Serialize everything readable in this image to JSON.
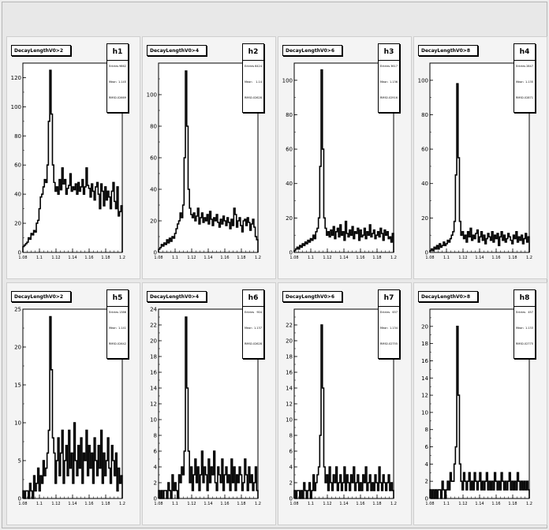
{
  "x_axis": {
    "min": 1.08,
    "max": 1.2,
    "ticks": [
      "1.08",
      "1.1",
      "1.12",
      "1.14",
      "1.16",
      "1.18",
      "1.2"
    ]
  },
  "stat_labels": {
    "entries": "Entries",
    "mean": "Mean",
    "rms": "RMS"
  },
  "colors": {
    "line": "#000000",
    "pad": "#f4f4f4",
    "frame": "#e8e8e8"
  },
  "chart_data": [
    {
      "type": "histogram",
      "name": "h1",
      "title": "DecayLengthV0>2",
      "entries": "9862",
      "mean": "1.145",
      "rms": "0.02669",
      "ylim": [
        0,
        130
      ],
      "yticks": [
        0,
        20,
        40,
        60,
        80,
        100,
        120
      ],
      "xlim": [
        1.08,
        1.2
      ],
      "y": [
        4,
        5,
        6,
        7,
        10,
        9,
        13,
        12,
        15,
        14,
        20,
        22,
        30,
        38,
        40,
        45,
        50,
        48,
        60,
        90,
        125,
        95,
        60,
        48,
        42,
        45,
        40,
        50,
        43,
        58,
        47,
        50,
        40,
        44,
        46,
        54,
        42,
        45,
        43,
        47,
        40,
        48,
        42,
        45,
        50,
        40,
        45,
        58,
        46,
        44,
        38,
        47,
        42,
        36,
        45,
        48,
        40,
        30,
        47,
        42,
        32,
        45,
        36,
        42,
        38,
        30,
        42,
        48,
        35,
        30,
        45,
        25,
        28,
        32
      ]
    },
    {
      "type": "histogram",
      "name": "h2",
      "title": "DecayLengthV0>4",
      "entries": "6424",
      "mean": "1.14",
      "rms": "0.02628",
      "ylim": [
        0,
        120
      ],
      "yticks": [
        0,
        20,
        40,
        60,
        80,
        100
      ],
      "xlim": [
        1.08,
        1.2
      ],
      "y": [
        2,
        3,
        5,
        4,
        6,
        5,
        8,
        6,
        9,
        7,
        10,
        9,
        12,
        15,
        18,
        20,
        25,
        22,
        30,
        60,
        115,
        80,
        40,
        28,
        24,
        22,
        25,
        20,
        23,
        28,
        18,
        22,
        25,
        19,
        22,
        20,
        24,
        18,
        26,
        21,
        17,
        22,
        20,
        24,
        19,
        16,
        21,
        18,
        23,
        20,
        17,
        22,
        19,
        15,
        21,
        17,
        28,
        24,
        16,
        20,
        22,
        17,
        13,
        20,
        21,
        17,
        22,
        19,
        14,
        18,
        21,
        16,
        10,
        8
      ]
    },
    {
      "type": "histogram",
      "name": "h3",
      "title": "DecayLengthV0>6",
      "entries": "3617",
      "mean": "1.136",
      "rms": "0.02916",
      "ylim": [
        0,
        110
      ],
      "yticks": [
        0,
        20,
        40,
        60,
        80,
        100
      ],
      "xlim": [
        1.08,
        1.2
      ],
      "y": [
        1,
        2,
        3,
        2,
        4,
        3,
        5,
        4,
        6,
        5,
        7,
        6,
        8,
        7,
        10,
        8,
        12,
        14,
        20,
        50,
        106,
        60,
        20,
        14,
        10,
        12,
        9,
        13,
        10,
        15,
        8,
        12,
        14,
        9,
        16,
        10,
        12,
        7,
        18,
        11,
        9,
        13,
        10,
        15,
        8,
        12,
        11,
        14,
        7,
        13,
        9,
        10,
        14,
        8,
        12,
        10,
        16,
        9,
        11,
        13,
        8,
        10,
        12,
        9,
        14,
        11,
        7,
        13,
        10,
        12,
        8,
        9,
        6,
        11
      ]
    },
    {
      "type": "histogram",
      "name": "h4",
      "title": "DecayLengthV0>8",
      "entries": "2847",
      "mean": "1.135",
      "rms": "0.02871",
      "ylim": [
        0,
        110
      ],
      "yticks": [
        0,
        20,
        40,
        60,
        80,
        100
      ],
      "xlim": [
        1.08,
        1.2
      ],
      "y": [
        1,
        2,
        1,
        3,
        2,
        4,
        2,
        5,
        3,
        4,
        6,
        4,
        5,
        7,
        6,
        8,
        10,
        12,
        18,
        45,
        98,
        55,
        18,
        10,
        12,
        8,
        10,
        6,
        12,
        9,
        14,
        7,
        10,
        8,
        11,
        13,
        6,
        9,
        12,
        7,
        10,
        5,
        8,
        11,
        9,
        7,
        12,
        6,
        10,
        8,
        11,
        4,
        9,
        12,
        7,
        10,
        6,
        8,
        11,
        9,
        7,
        5,
        10,
        8,
        12,
        6,
        9,
        7,
        10,
        5,
        8,
        11,
        6,
        9
      ]
    },
    {
      "type": "histogram",
      "name": "h5",
      "title": "DecayLengthV0>2",
      "entries": "1386",
      "mean": "1.141",
      "rms": "0.02642",
      "ylim": [
        0,
        25
      ],
      "yticks": [
        0,
        5,
        10,
        15,
        20,
        25
      ],
      "xlim": [
        1.08,
        1.2
      ],
      "y": [
        1,
        0,
        1,
        1,
        0,
        2,
        1,
        0,
        3,
        1,
        2,
        4,
        1,
        3,
        2,
        5,
        3,
        4,
        6,
        9,
        24,
        17,
        8,
        6,
        2,
        5,
        8,
        3,
        6,
        9,
        2,
        5,
        7,
        3,
        9,
        4,
        6,
        2,
        10,
        5,
        3,
        7,
        4,
        8,
        2,
        6,
        5,
        9,
        3,
        7,
        4,
        6,
        2,
        8,
        5,
        3,
        7,
        4,
        9,
        2,
        6,
        3,
        5,
        8,
        4,
        2,
        7,
        5,
        3,
        6,
        1,
        4,
        2,
        3
      ]
    },
    {
      "type": "histogram",
      "name": "h6",
      "title": "DecayLengthV0>4",
      "entries": "904",
      "mean": "1.137",
      "rms": "0.02628",
      "ylim": [
        0,
        24
      ],
      "yticks": [
        0,
        2,
        4,
        6,
        8,
        10,
        12,
        14,
        16,
        18,
        20,
        22,
        24
      ],
      "xlim": [
        1.08,
        1.2
      ],
      "y": [
        1,
        0,
        1,
        0,
        1,
        1,
        0,
        2,
        1,
        0,
        3,
        1,
        2,
        1,
        0,
        3,
        2,
        4,
        3,
        6,
        23,
        14,
        6,
        2,
        4,
        1,
        3,
        5,
        2,
        4,
        1,
        3,
        6,
        2,
        4,
        3,
        1,
        5,
        2,
        4,
        3,
        6,
        2,
        1,
        4,
        3,
        2,
        5,
        1,
        3,
        4,
        2,
        3,
        1,
        5,
        2,
        4,
        1,
        3,
        2,
        4,
        3,
        1,
        2,
        5,
        3,
        1,
        4,
        2,
        3,
        1,
        2,
        4,
        1
      ]
    },
    {
      "type": "histogram",
      "name": "h7",
      "title": "DecayLengthV0>6",
      "entries": "637",
      "mean": "1.134",
      "rms": "0.02755",
      "ylim": [
        0,
        24
      ],
      "yticks": [
        0,
        2,
        4,
        6,
        8,
        10,
        12,
        14,
        16,
        18,
        20,
        22
      ],
      "xlim": [
        1.08,
        1.2
      ],
      "y": [
        1,
        0,
        1,
        1,
        0,
        1,
        0,
        2,
        1,
        0,
        1,
        2,
        0,
        1,
        3,
        1,
        2,
        3,
        4,
        8,
        22,
        14,
        4,
        2,
        3,
        1,
        4,
        2,
        1,
        3,
        2,
        4,
        1,
        2,
        3,
        1,
        2,
        4,
        1,
        3,
        2,
        1,
        3,
        2,
        4,
        1,
        2,
        3,
        1,
        2,
        1,
        3,
        2,
        4,
        1,
        2,
        3,
        1,
        2,
        1,
        3,
        2,
        1,
        4,
        2,
        1,
        3,
        2,
        1,
        2,
        3,
        1,
        2,
        1
      ]
    },
    {
      "type": "histogram",
      "name": "h8",
      "title": "DecayLengthV0>8",
      "entries": "457",
      "mean": "1.133",
      "rms": "0.02775",
      "ylim": [
        0,
        22
      ],
      "yticks": [
        0,
        2,
        4,
        6,
        8,
        10,
        12,
        14,
        16,
        18,
        20
      ],
      "xlim": [
        1.08,
        1.2
      ],
      "y": [
        1,
        0,
        1,
        0,
        1,
        0,
        1,
        1,
        0,
        2,
        1,
        0,
        1,
        2,
        1,
        3,
        2,
        2,
        4,
        6,
        20,
        12,
        4,
        2,
        1,
        3,
        2,
        1,
        2,
        3,
        1,
        2,
        1,
        3,
        2,
        1,
        2,
        3,
        1,
        2,
        1,
        2,
        3,
        1,
        2,
        1,
        2,
        1,
        3,
        2,
        1,
        2,
        1,
        3,
        2,
        1,
        2,
        1,
        2,
        3,
        1,
        2,
        1,
        2,
        1,
        3,
        2,
        1,
        2,
        1,
        2,
        1,
        2,
        1
      ]
    }
  ]
}
